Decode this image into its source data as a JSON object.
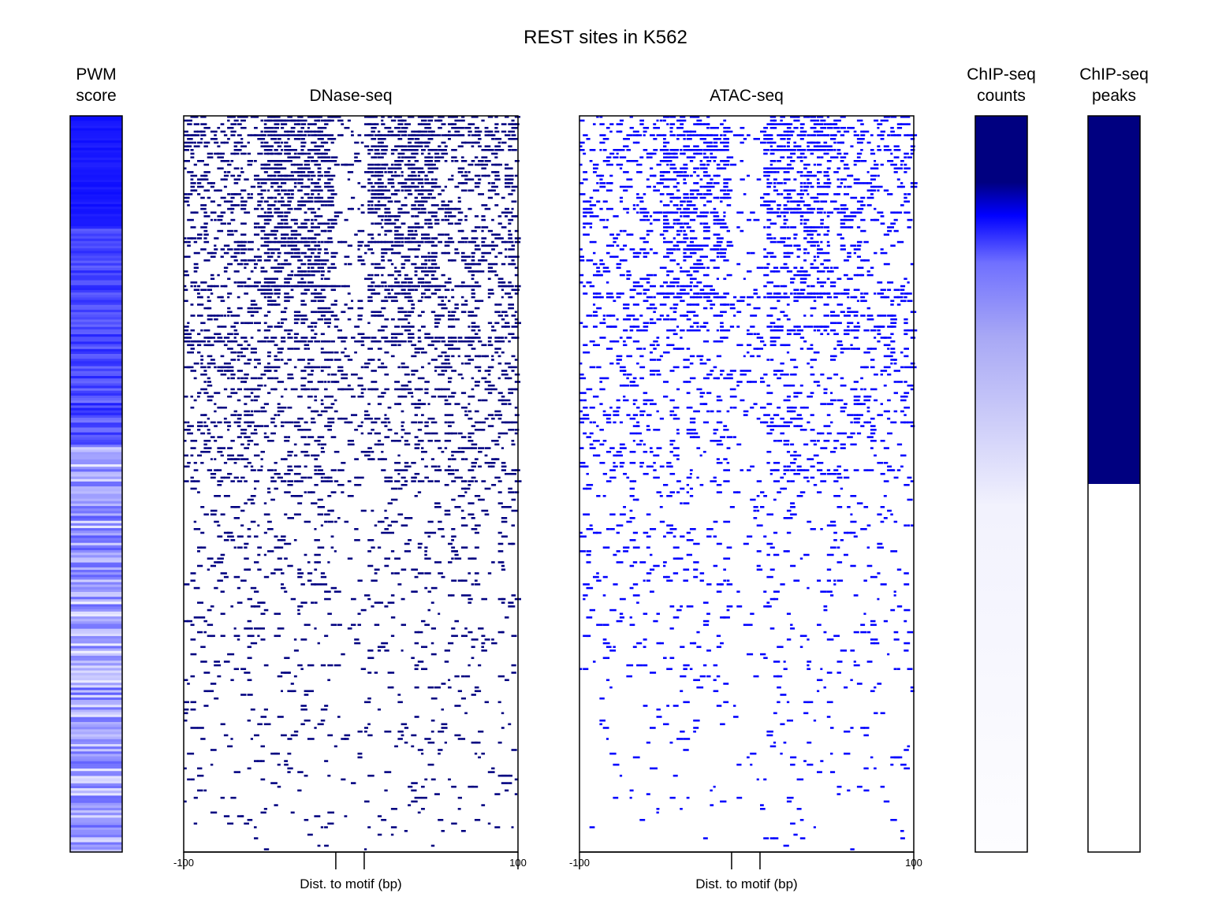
{
  "chart_data": {
    "type": "heatmap",
    "title": "REST sites in K562",
    "colors": {
      "dark": "#000080",
      "blue": "#0000ff",
      "white": "#ffffff"
    },
    "panels": [
      {
        "id": "pwm",
        "title_lines": [
          "PWM",
          "score"
        ],
        "kind": "blue-gradient-rows"
      },
      {
        "id": "dnase",
        "title": "DNase-seq",
        "kind": "cut-site-matrix",
        "xlabel": "Dist. to motif (bp)",
        "xlim": [
          -100,
          100
        ],
        "tick_labels": [
          "-100",
          "100"
        ],
        "motif_bounds": [
          -9,
          8
        ]
      },
      {
        "id": "atac",
        "title": "ATAC-seq",
        "kind": "cut-site-matrix",
        "xlabel": "Dist. to motif (bp)",
        "xlim": [
          -100,
          100
        ],
        "tick_labels": [
          "-100",
          "100"
        ],
        "motif_bounds": [
          -9,
          8
        ]
      },
      {
        "id": "chip_counts",
        "title_lines": [
          "ChIP-seq",
          "counts"
        ],
        "kind": "gradient-column"
      },
      {
        "id": "chip_peaks",
        "title_lines": [
          "ChIP-seq",
          "peaks"
        ],
        "kind": "binary-column",
        "bound_fraction": 0.5
      }
    ]
  }
}
